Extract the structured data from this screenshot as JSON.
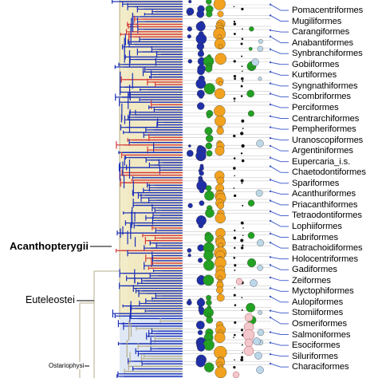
{
  "clades": [
    {
      "label": "Acanthopterygii",
      "style": "big"
    },
    {
      "label": "Euteleostei",
      "style": "mid"
    },
    {
      "label": "Ostariophysi",
      "style": "small"
    }
  ],
  "orders": [
    "Pomacentriformes",
    "Mugiliformes",
    "Carangiformes",
    "Anabantiformes",
    "Synbranchiformes",
    "Gobiiformes",
    "Kurtiformes",
    "Syngnathiformes",
    "Scombriformes",
    "Perciformes",
    "Centrarchiformes",
    "Pempheriformes",
    "Uranoscopiformes",
    "Argentiniformes",
    "Eupercaria_i.s.",
    "Chaetodontiformes",
    "Spariformes",
    "Acanthuriformes",
    "Priacanthiformes",
    "Tetraodontiformes",
    "Lophiiformes",
    "Labriformes",
    "Batrachoidiformes",
    "Holocentriformes",
    "Gadiformes",
    "Zeiformes",
    "Myctophiformes",
    "Aulopiformes",
    "Stomiiformes",
    "Osmeriformes",
    "Salmoniformes",
    "Esociformes",
    "Siluriformes",
    "Characiformes"
  ],
  "colors": {
    "blue": "#1a2fb8",
    "red": "#d63a3a",
    "tan_shade": "#f3ecc8",
    "lightblue_shade": "#dfe8f4",
    "gray_branch": "#b5ad8a",
    "dot_navy": "#1f2fa8",
    "dot_green": "#22a122",
    "dot_orange": "#f2a21f",
    "dot_pink": "#f4c7cc",
    "dot_lightblue": "#bcd8e8",
    "dot_black": "#111111",
    "pointer_line": "#3a56c8"
  }
}
